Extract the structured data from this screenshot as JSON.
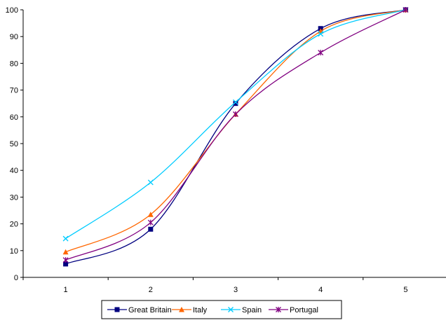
{
  "chart_data": {
    "type": "line",
    "title": "",
    "xlabel": "",
    "ylabel": "",
    "x": [
      1,
      2,
      3,
      4,
      5
    ],
    "x_tick_labels": [
      "1",
      "2",
      "3",
      "4",
      "5"
    ],
    "y_tick_labels": [
      "0",
      "10",
      "20",
      "30",
      "40",
      "50",
      "60",
      "70",
      "80",
      "90",
      "100"
    ],
    "ylim": [
      0,
      100
    ],
    "grid": false,
    "legend_position": "bottom",
    "series": [
      {
        "name": "Great Britain",
        "values": [
          5,
          18,
          65,
          93,
          100
        ],
        "color": "#000080",
        "marker": "square"
      },
      {
        "name": "Italy",
        "values": [
          9.5,
          23.5,
          61,
          92,
          100
        ],
        "color": "#FF6600",
        "marker": "triangle"
      },
      {
        "name": "Spain",
        "values": [
          14.5,
          35.5,
          65.5,
          91,
          100
        ],
        "color": "#00CCFF",
        "marker": "x"
      },
      {
        "name": "Portugal",
        "values": [
          6.5,
          20.5,
          61,
          84,
          100
        ],
        "color": "#800080",
        "marker": "star"
      }
    ]
  }
}
